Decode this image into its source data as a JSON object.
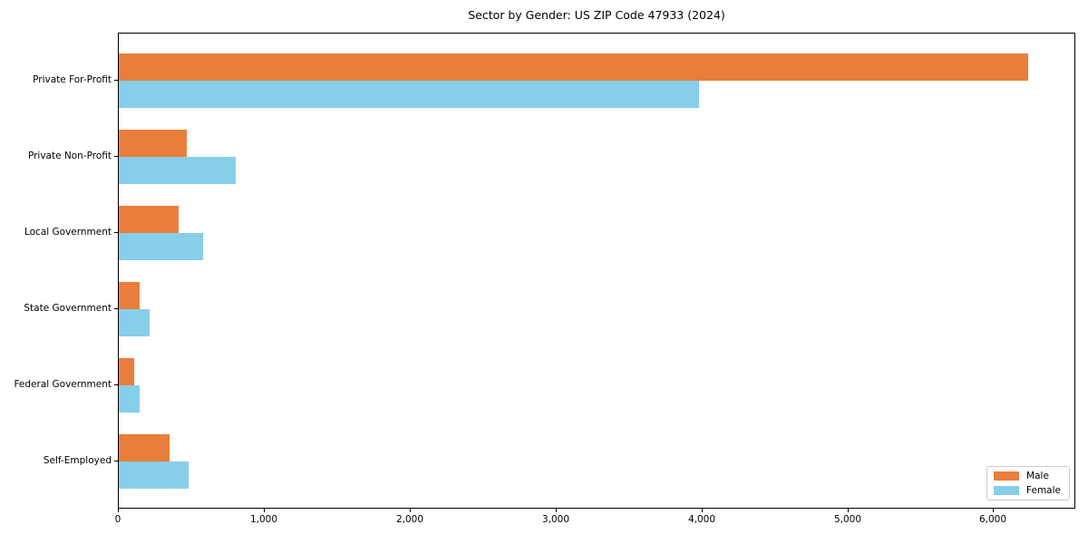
{
  "chart_data": {
    "type": "bar",
    "orientation": "horizontal",
    "title": "Sector by Gender: US ZIP Code 47933 (2024)",
    "categories": [
      "Private For-Profit",
      "Private Non-Profit",
      "Local Government",
      "State Government",
      "Federal Government",
      "Self-Employed"
    ],
    "series": [
      {
        "name": "Male",
        "color": "#e87d3c",
        "values": [
          6230,
          465,
          410,
          140,
          105,
          345
        ]
      },
      {
        "name": "Female",
        "color": "#87ceeb",
        "values": [
          3980,
          800,
          575,
          210,
          140,
          480
        ]
      }
    ],
    "xlim": [
      0,
      6550
    ],
    "xticks": [
      0,
      1000,
      2000,
      3000,
      4000,
      5000,
      6000
    ],
    "xtick_labels": [
      "0",
      "1,000",
      "2,000",
      "3,000",
      "4,000",
      "5,000",
      "6,000"
    ],
    "xlabel": "",
    "ylabel": "",
    "grid": false,
    "legend_position": "lower right",
    "axis_color": "#000000",
    "legend_border_color": "#cccccc"
  }
}
